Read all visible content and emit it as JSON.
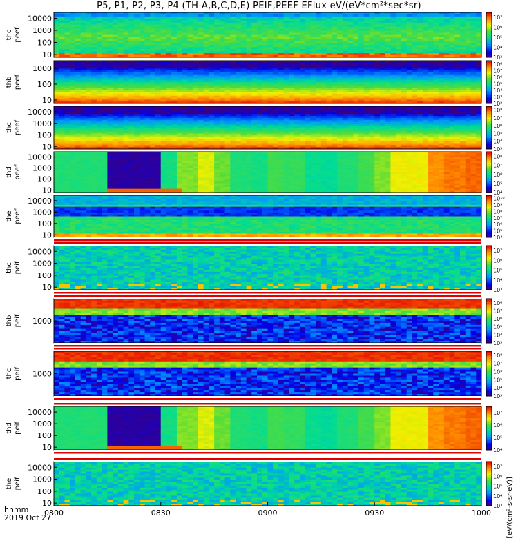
{
  "title": "P5, P1, P2, P3, P4 (TH-A,B,C,D,E) PEIF,PEEF EFlux eV/(eV*cm²*sec*sr)",
  "colorbar_unit": "[eV/(cm²-s-sr-eV)]",
  "footer": {
    "time_label": "hhmm",
    "date_label": "2019 Oct 27"
  },
  "chart_data": {
    "type": "heatmap",
    "x_ticks": [
      "0800",
      "0830",
      "0900",
      "0930",
      "1000"
    ],
    "x_range_minutes": [
      0,
      120
    ],
    "y_scale": "log",
    "panels": [
      {
        "probe": "thc",
        "product": "peef",
        "ylim": [
          6,
          30000
        ],
        "yticks": [
          "10",
          "100",
          "1000",
          "10000"
        ],
        "cb_ticks": [
          "10³",
          "10⁴",
          "10⁵",
          "10⁶",
          "10⁷"
        ],
        "cb_range": [
          3,
          7.5
        ],
        "pattern": "elec_quiet"
      },
      {
        "probe": "thb",
        "product": "peef",
        "ylim": [
          6,
          3000
        ],
        "yticks": [
          "10",
          "100",
          "1000"
        ],
        "cb_ticks": [
          "10²",
          "10³",
          "10⁴",
          "10⁵",
          "10⁶",
          "10⁷",
          "10⁸"
        ],
        "cb_range": [
          2,
          8.5
        ],
        "pattern": "elec_bands"
      },
      {
        "probe": "thc",
        "product": "peef",
        "ylim": [
          6,
          30000
        ],
        "yticks": [
          "10",
          "100",
          "1000",
          "10000"
        ],
        "cb_ticks": [
          "10³",
          "10⁴",
          "10⁵",
          "10⁶",
          "10⁷",
          "10⁸"
        ],
        "cb_range": [
          3,
          8.5
        ],
        "pattern": "elec_bands"
      },
      {
        "probe": "thd",
        "product": "peef",
        "ylim": [
          6,
          30000
        ],
        "yticks": [
          "10",
          "100",
          "1000",
          "10000"
        ],
        "cb_ticks": [
          "10⁴",
          "10⁵",
          "10⁶",
          "10⁷",
          "10⁸"
        ],
        "cb_range": [
          4,
          8.5
        ],
        "pattern": "blocks"
      },
      {
        "probe": "the",
        "product": "peef",
        "ylim": [
          6,
          30000
        ],
        "yticks": [
          "10",
          "100",
          "1000",
          "10000"
        ],
        "cb_ticks": [
          "10⁴",
          "10⁵",
          "10⁶",
          "10⁷",
          "10⁸",
          "10⁹",
          "10¹⁰"
        ],
        "cb_range": [
          4,
          10.5
        ],
        "pattern": "elec_active"
      },
      {
        "probe": "thc",
        "product": "peif",
        "ylim": [
          6,
          30000
        ],
        "yticks": [
          "10",
          "100",
          "1000",
          "10000"
        ],
        "cb_ticks": [
          "10³",
          "10⁴",
          "10⁵",
          "10⁶",
          "10⁷"
        ],
        "cb_range": [
          3,
          7.5
        ],
        "pattern": "ion_quiet"
      },
      {
        "probe": "thb",
        "product": "peif",
        "ylim": [
          200,
          5000
        ],
        "yticks": [
          "1000"
        ],
        "cb_ticks": [
          "10³",
          "10⁴",
          "10⁵",
          "10⁶",
          "10⁷",
          "10⁸"
        ],
        "cb_range": [
          3,
          8.5
        ],
        "pattern": "ion_bands"
      },
      {
        "probe": "thc",
        "product": "peif",
        "ylim": [
          200,
          5000
        ],
        "yticks": [
          "1000"
        ],
        "cb_ticks": [
          "10³",
          "10⁴",
          "10⁵",
          "10⁶",
          "10⁷",
          "10⁸"
        ],
        "cb_range": [
          3,
          8.5
        ],
        "pattern": "ion_bands"
      },
      {
        "probe": "thd",
        "product": "peif",
        "ylim": [
          6,
          30000
        ],
        "yticks": [
          "10",
          "100",
          "1000",
          "10000"
        ],
        "cb_ticks": [
          "10⁴",
          "10⁵",
          "10⁶",
          "10⁷"
        ],
        "cb_range": [
          4,
          7.5
        ],
        "pattern": "blocks"
      },
      {
        "probe": "the",
        "product": "peif",
        "ylim": [
          6,
          30000
        ],
        "yticks": [
          "10",
          "100",
          "1000",
          "10000"
        ],
        "cb_ticks": [
          "10³",
          "10⁴",
          "10⁵",
          "10⁶",
          "10⁷"
        ],
        "cb_range": [
          3,
          7.5
        ],
        "pattern": "ion_quiet"
      }
    ]
  }
}
